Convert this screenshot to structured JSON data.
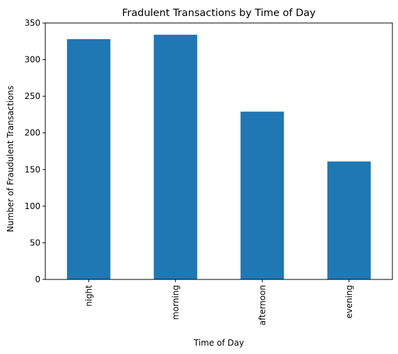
{
  "chart_data": {
    "type": "bar",
    "title": "Fradulent Transactions by Time of Day",
    "xlabel": "Time of Day",
    "ylabel": "Number of Fraudulent Transactions",
    "categories": [
      "night",
      "morning",
      "afternoon",
      "evening"
    ],
    "values": [
      328,
      334,
      229,
      161
    ],
    "ylim": [
      0,
      350
    ],
    "yticks": [
      0,
      50,
      100,
      150,
      200,
      250,
      300,
      350
    ],
    "bar_color": "#1f77b4",
    "grid": false,
    "legend": "none"
  }
}
